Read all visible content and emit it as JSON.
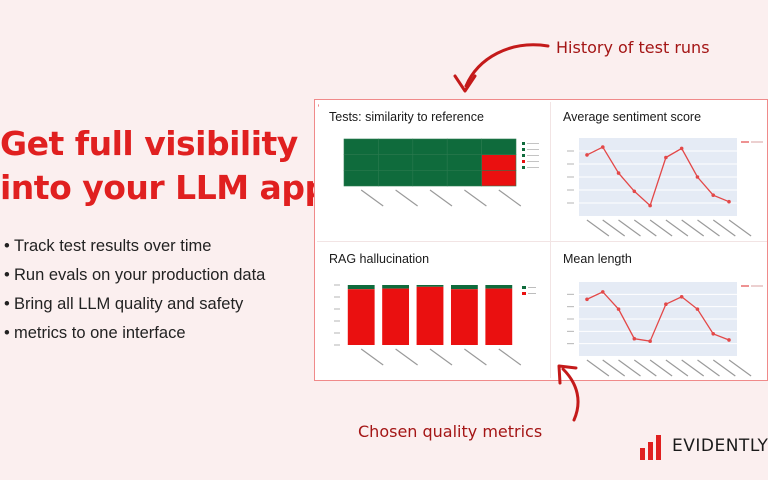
{
  "headline": {
    "line1": "Get full visibility",
    "line2": "into your LLM app"
  },
  "bullets": [
    "Track test results over time",
    "Run evals on your production data",
    "Bring all LLM quality and safety",
    "metrics to one interface"
  ],
  "callouts": {
    "top": "History of test runs",
    "bottom": "Chosen quality metrics"
  },
  "brand": {
    "name": "EVIDENTLY",
    "accent": "#e02020",
    "callout_color": "#a41515"
  },
  "panels": [
    {
      "title": "Tests: similarity to reference"
    },
    {
      "title": "Average sentiment score"
    },
    {
      "title": "RAG hallucination"
    },
    {
      "title": "Mean length"
    }
  ],
  "chart_data": [
    {
      "type": "heatmap",
      "rows": 3,
      "columns": 5,
      "colors": {
        "SUCCESS": "#0f6b3c",
        "FAIL": "#ea1010"
      },
      "cells": [
        [
          "SUCCESS",
          "SUCCESS",
          "SUCCESS",
          "SUCCESS",
          "SUCCESS"
        ],
        [
          "SUCCESS",
          "SUCCESS",
          "SUCCESS",
          "SUCCESS",
          "FAIL"
        ],
        [
          "SUCCESS",
          "SUCCESS",
          "SUCCESS",
          "SUCCESS",
          "FAIL"
        ]
      ]
    },
    {
      "type": "line",
      "color": "#e34848",
      "values": [
        0.72,
        0.78,
        0.58,
        0.44,
        0.33,
        0.7,
        0.77,
        0.55,
        0.41,
        0.36
      ],
      "ylim": [
        0.25,
        0.85
      ]
    },
    {
      "type": "bar",
      "stacked": true,
      "series": [
        {
          "name": "True",
          "color": "#0f6b3c",
          "values": [
            7,
            6,
            3,
            7,
            6
          ]
        },
        {
          "name": "False",
          "color": "#ea1010",
          "values": [
            93,
            94,
            97,
            93,
            94
          ]
        }
      ],
      "ylim": [
        0,
        100
      ]
    },
    {
      "type": "line",
      "color": "#e34848",
      "values": [
        230,
        260,
        190,
        70,
        60,
        210,
        240,
        190,
        90,
        65
      ],
      "ylim": [
        0,
        300
      ]
    }
  ]
}
